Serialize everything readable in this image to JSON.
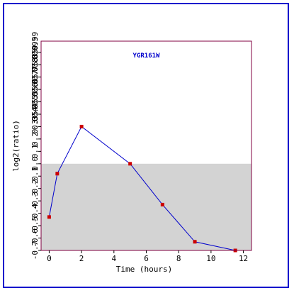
{
  "chart_data": {
    "type": "line",
    "title": "YGR161W",
    "xlabel": "Time (hours)",
    "ylabel": "log2(ratio)",
    "xlim": [
      -0.5,
      12.5
    ],
    "ylim": [
      -0.7,
      0.99
    ],
    "x_ticks": [
      0,
      2,
      4,
      6,
      8,
      10,
      12
    ],
    "x_tick_labels": [
      "0",
      "2",
      "4",
      "6",
      "8",
      "10",
      "12"
    ],
    "y_ticks": [
      -0.7,
      -0.6,
      -0.5,
      -0.4,
      -0.3,
      -0.2,
      -0.1,
      0.0,
      0.1,
      0.2,
      0.3,
      0.4,
      0.5,
      0.6,
      0.7,
      0.8,
      0.9
    ],
    "y_tick_labels": [
      "-0.7",
      "-0.6",
      "-0.5",
      "-0.4",
      "-0.3",
      "-0.2",
      "-0.1",
      "0.0",
      "0.1",
      "0.2",
      "0.3",
      "0.4",
      "0.5",
      "0.6",
      "0.7",
      "0.8",
      "0.9"
    ],
    "y_tick_labels_right_edge_column": [
      "0.99",
      "0.95",
      "0.9",
      "0.85",
      "0.8",
      "0.75",
      "0.7",
      "0.65",
      "0.6",
      "0.55",
      "0.5",
      "0.45",
      "0.4",
      "0.35"
    ],
    "shaded_band": {
      "y_from": -0.7,
      "y_to": 0.0,
      "color": "#d3d3d3"
    },
    "series": [
      {
        "line_color": "#0000cc",
        "marker_color": "#cc0000",
        "x": [
          0,
          0.5,
          2,
          5,
          7,
          9,
          11.5
        ],
        "y": [
          -0.43,
          -0.08,
          0.3,
          0.0,
          -0.33,
          -0.63,
          -0.7
        ]
      }
    ],
    "grid": false
  },
  "colors": {
    "frame_border": "#0000cc",
    "plot_border": "#800040",
    "background": "#ffffff"
  }
}
